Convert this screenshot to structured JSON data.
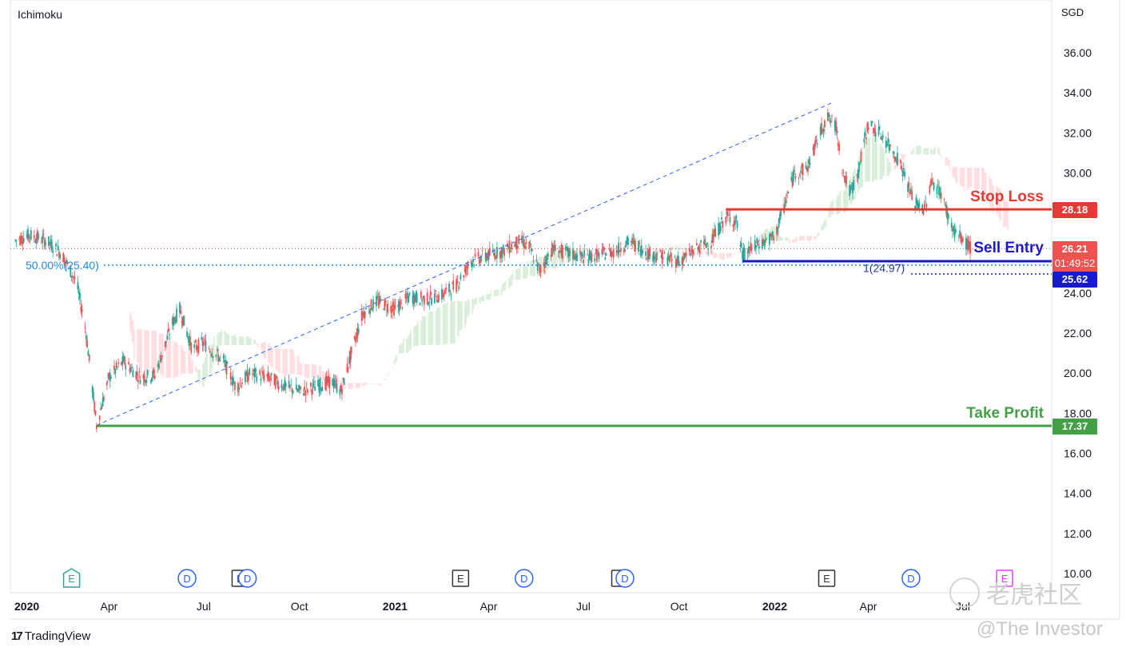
{
  "header": {
    "indicator": "Ichimoku",
    "currency": "SGD"
  },
  "footer": {
    "brand": "TradingView",
    "watermark_cn": "老虎社区",
    "watermark_user": "@The Investor"
  },
  "colors": {
    "up": "#26a69a",
    "down": "#ef5350",
    "stop_loss": "#e53935",
    "take_profit": "#43a047",
    "sell_entry": "#1a1acd",
    "fib": "#2962ff",
    "cloud_green": "#c8e6c9",
    "cloud_red": "#ffcdd2"
  },
  "chart_data": {
    "type": "candlestick",
    "y_unit": "SGD",
    "ylim": [
      10,
      37.5
    ],
    "y_ticks": [
      "10.00",
      "12.00",
      "14.00",
      "16.00",
      "18.00",
      "20.00",
      "22.00",
      "24.00",
      "26.00",
      "28.00",
      "30.00",
      "32.00",
      "34.00",
      "36.00"
    ],
    "x_range": [
      "2020-01-01",
      "2022-07-15"
    ],
    "x_ticks": [
      {
        "label": "2020",
        "date": "2020-01-01",
        "bold": true
      },
      {
        "label": "Apr",
        "date": "2020-04-01"
      },
      {
        "label": "Jul",
        "date": "2020-07-01"
      },
      {
        "label": "Oct",
        "date": "2020-10-01"
      },
      {
        "label": "2021",
        "date": "2021-01-01",
        "bold": true
      },
      {
        "label": "Apr",
        "date": "2021-04-01"
      },
      {
        "label": "Jul",
        "date": "2021-07-01"
      },
      {
        "label": "Oct",
        "date": "2021-10-01"
      },
      {
        "label": "2022",
        "date": "2022-01-01",
        "bold": true
      },
      {
        "label": "Apr",
        "date": "2022-04-01"
      },
      {
        "label": "Jul",
        "date": "2022-07-01"
      }
    ],
    "price_path": [
      [
        "2020-01-01",
        26.6
      ],
      [
        "2020-01-15",
        26.9
      ],
      [
        "2020-02-01",
        26.6
      ],
      [
        "2020-02-15",
        26.0
      ],
      [
        "2020-03-01",
        24.5
      ],
      [
        "2020-03-10",
        22.0
      ],
      [
        "2020-03-20",
        17.4
      ],
      [
        "2020-04-01",
        19.8
      ],
      [
        "2020-04-15",
        20.6
      ],
      [
        "2020-05-01",
        19.8
      ],
      [
        "2020-05-15",
        19.9
      ],
      [
        "2020-06-01",
        22.5
      ],
      [
        "2020-06-08",
        23.2
      ],
      [
        "2020-06-20",
        21.2
      ],
      [
        "2020-07-01",
        21.5
      ],
      [
        "2020-07-20",
        20.6
      ],
      [
        "2020-08-01",
        19.3
      ],
      [
        "2020-08-15",
        20.0
      ],
      [
        "2020-09-01",
        19.8
      ],
      [
        "2020-09-15",
        19.4
      ],
      [
        "2020-10-01",
        19.1
      ],
      [
        "2020-10-15",
        19.3
      ],
      [
        "2020-11-01",
        19.6
      ],
      [
        "2020-11-10",
        19.1
      ],
      [
        "2020-11-20",
        21.0
      ],
      [
        "2020-12-01",
        23.0
      ],
      [
        "2020-12-15",
        23.6
      ],
      [
        "2021-01-01",
        23.2
      ],
      [
        "2021-01-15",
        23.8
      ],
      [
        "2021-02-01",
        23.7
      ],
      [
        "2021-02-15",
        23.9
      ],
      [
        "2021-03-01",
        24.4
      ],
      [
        "2021-03-15",
        25.6
      ],
      [
        "2021-04-01",
        25.9
      ],
      [
        "2021-04-15",
        26.1
      ],
      [
        "2021-05-01",
        26.6
      ],
      [
        "2021-05-10",
        26.3
      ],
      [
        "2021-05-20",
        25.1
      ],
      [
        "2021-06-01",
        26.2
      ],
      [
        "2021-06-15",
        26.0
      ],
      [
        "2021-07-01",
        25.8
      ],
      [
        "2021-07-15",
        25.9
      ],
      [
        "2021-08-01",
        26.1
      ],
      [
        "2021-08-15",
        26.6
      ],
      [
        "2021-09-01",
        26.0
      ],
      [
        "2021-09-15",
        25.8
      ],
      [
        "2021-10-01",
        25.6
      ],
      [
        "2021-10-15",
        26.1
      ],
      [
        "2021-11-01",
        26.6
      ],
      [
        "2021-11-15",
        27.8
      ],
      [
        "2021-11-25",
        27.6
      ],
      [
        "2021-12-01",
        25.9
      ],
      [
        "2021-12-15",
        26.4
      ],
      [
        "2022-01-01",
        26.8
      ],
      [
        "2022-01-10",
        28.3
      ],
      [
        "2022-01-20",
        30.0
      ],
      [
        "2022-02-01",
        30.2
      ],
      [
        "2022-02-10",
        31.5
      ],
      [
        "2022-02-20",
        32.8
      ],
      [
        "2022-03-01",
        32.3
      ],
      [
        "2022-03-08",
        30.0
      ],
      [
        "2022-03-15",
        29.0
      ],
      [
        "2022-03-22",
        30.0
      ],
      [
        "2022-04-01",
        32.5
      ],
      [
        "2022-04-15",
        31.8
      ],
      [
        "2022-05-01",
        30.6
      ],
      [
        "2022-05-15",
        28.5
      ],
      [
        "2022-05-25",
        28.2
      ],
      [
        "2022-06-01",
        29.6
      ],
      [
        "2022-06-10",
        29.0
      ],
      [
        "2022-06-20",
        27.3
      ],
      [
        "2022-07-01",
        26.6
      ],
      [
        "2022-07-10",
        26.21
      ]
    ],
    "levels": [
      {
        "name": "Stop Loss",
        "value": 28.18,
        "label": "28.18",
        "start": "2021-11-15",
        "color_key": "stop_loss"
      },
      {
        "name": "Sell Entry",
        "value": 25.62,
        "label": "25.62",
        "start": "2021-12-01",
        "color_key": "sell_entry"
      },
      {
        "name": "Take Profit",
        "value": 17.37,
        "label": "17.37",
        "start": "2020-03-20",
        "color_key": "take_profit"
      }
    ],
    "last_price": {
      "value": 26.21,
      "label": "26.21",
      "countdown": "01:49:52"
    },
    "fib_line": {
      "label": "50.00%(25.40)",
      "value": 25.4
    },
    "fib_projection": {
      "label": "1(24.97)",
      "value": 24.97
    },
    "trendline": {
      "from": [
        "2020-03-20",
        17.4
      ],
      "to": [
        "2022-02-25",
        33.5
      ]
    },
    "events": [
      {
        "letter": "E",
        "date": "2020-02-25",
        "style": "earnings-green"
      },
      {
        "letter": "D",
        "date": "2020-06-15",
        "style": "dividend"
      },
      {
        "letter": "E",
        "date": "2020-08-05",
        "style": "earnings"
      },
      {
        "letter": "D",
        "date": "2020-08-12",
        "style": "dividend"
      },
      {
        "letter": "E",
        "date": "2021-03-05",
        "style": "earnings"
      },
      {
        "letter": "D",
        "date": "2021-05-05",
        "style": "dividend"
      },
      {
        "letter": "E",
        "date": "2021-08-05",
        "style": "earnings"
      },
      {
        "letter": "D",
        "date": "2021-08-10",
        "style": "dividend"
      },
      {
        "letter": "E",
        "date": "2022-02-20",
        "style": "earnings"
      },
      {
        "letter": "D",
        "date": "2022-05-12",
        "style": "dividend"
      },
      {
        "letter": "E",
        "date": "2022-08-10",
        "style": "earnings-future"
      }
    ]
  }
}
